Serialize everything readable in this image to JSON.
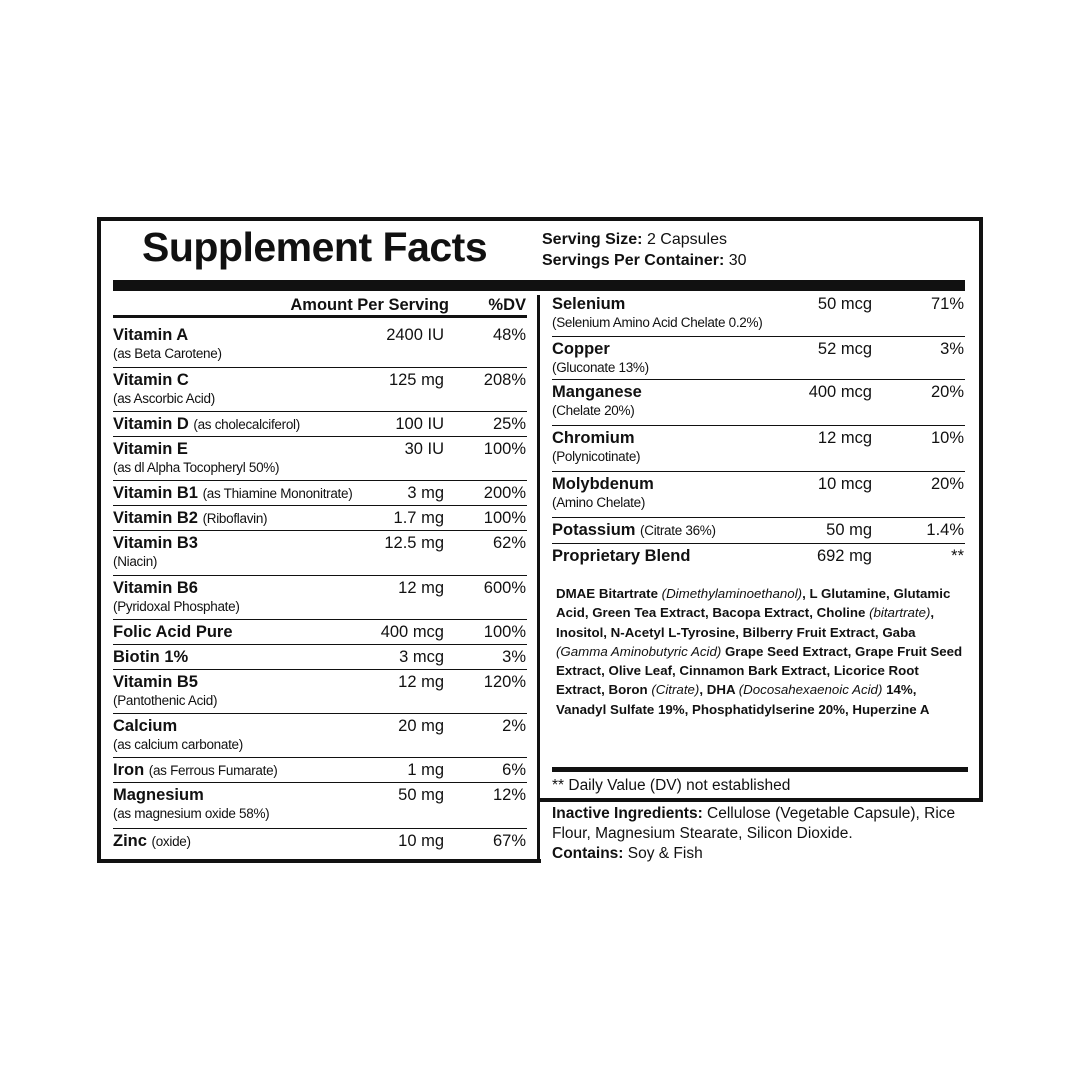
{
  "title": "Supplement Facts",
  "serving": {
    "size_label": "Serving Size:",
    "size": "2 Capsules",
    "per_container_label": "Servings Per Container:",
    "per_container": "30"
  },
  "headers": {
    "amount": "Amount Per Serving",
    "dv": "%DV"
  },
  "left_rows": [
    {
      "name": "Vitamin A",
      "sub": "(as Beta Carotene)",
      "inline": false,
      "amount": "2400 IU",
      "dv": "48%"
    },
    {
      "name": "Vitamin C",
      "sub": "(as Ascorbic Acid)",
      "inline": false,
      "amount": "125 mg",
      "dv": "208%"
    },
    {
      "name": "Vitamin D",
      "sub": "(as cholecalciferol)",
      "inline": true,
      "amount": "100 IU",
      "dv": "25%"
    },
    {
      "name": "Vitamin E",
      "sub": "(as dl Alpha Tocopheryl 50%)",
      "inline": false,
      "amount": "30 IU",
      "dv": "100%"
    },
    {
      "name": "Vitamin B1",
      "sub": "(as Thiamine Mononitrate)",
      "inline": true,
      "amount": "3 mg",
      "dv": "200%"
    },
    {
      "name": "Vitamin B2",
      "sub": "(Riboflavin)",
      "inline": true,
      "amount": "1.7 mg",
      "dv": "100%"
    },
    {
      "name": "Vitamin B3",
      "sub": "(Niacin)",
      "inline": false,
      "amount": "12.5 mg",
      "dv": "62%"
    },
    {
      "name": "Vitamin B6",
      "sub": "(Pyridoxal Phosphate)",
      "inline": false,
      "amount": "12 mg",
      "dv": "600%"
    },
    {
      "name": "Folic Acid Pure",
      "sub": "",
      "inline": true,
      "amount": "400 mcg",
      "dv": "100%"
    },
    {
      "name": "Biotin 1%",
      "sub": "",
      "inline": true,
      "amount": "3 mcg",
      "dv": "3%"
    },
    {
      "name": "Vitamin B5",
      "sub": "(Pantothenic Acid)",
      "inline": false,
      "amount": "12 mg",
      "dv": "120%"
    },
    {
      "name": "Calcium",
      "sub": "(as calcium carbonate)",
      "inline": false,
      "amount": "20 mg",
      "dv": "2%"
    },
    {
      "name": "Iron",
      "sub": "(as Ferrous Fumarate)",
      "inline": true,
      "amount": "1 mg",
      "dv": "6%"
    },
    {
      "name": "Magnesium",
      "sub": "(as magnesium oxide 58%)",
      "inline": false,
      "amount": "50 mg",
      "dv": "12%"
    },
    {
      "name": "Zinc",
      "sub": "(oxide)",
      "inline": true,
      "amount": "10 mg",
      "dv": "67%"
    }
  ],
  "right_rows": [
    {
      "name": "Selenium",
      "sub": "(Selenium Amino Acid Chelate 0.2%)",
      "inline": false,
      "amount": "50 mcg",
      "dv": "71%"
    },
    {
      "name": "Copper",
      "sub": "(Gluconate 13%)",
      "inline": false,
      "amount": "52 mcg",
      "dv": "3%"
    },
    {
      "name": "Manganese",
      "sub": "(Chelate 20%)",
      "inline": false,
      "amount": "400 mcg",
      "dv": "20%"
    },
    {
      "name": "Chromium",
      "sub": "(Polynicotinate)",
      "inline": false,
      "amount": "12 mcg",
      "dv": "10%"
    },
    {
      "name": "Molybdenum",
      "sub": "(Amino Chelate)",
      "inline": false,
      "amount": "10 mcg",
      "dv": "20%"
    },
    {
      "name": "Potassium",
      "sub": "(Citrate 36%)",
      "inline": true,
      "amount": "50 mg",
      "dv": "1.4%"
    },
    {
      "name": "Proprietary Blend",
      "sub": "",
      "inline": true,
      "amount": "692 mg",
      "dv": "**"
    }
  ],
  "blend": [
    {
      "t": "DMAE Bitartrate ",
      "i": false
    },
    {
      "t": "(Dimethylaminoethanol)",
      "i": true
    },
    {
      "t": ", L Glutamine, Glutamic Acid, Green Tea Extract, Bacopa Extract, Choline ",
      "i": false
    },
    {
      "t": "(bitartrate)",
      "i": true
    },
    {
      "t": ", Inositol, N-Acetyl L-Tyrosine, Bilberry Fruit Extract, Gaba ",
      "i": false
    },
    {
      "t": "(Gamma Aminobutyric Acid)",
      "i": true
    },
    {
      "t": " Grape Seed Extract, Grape Fruit Seed Extract, Olive Leaf, Cinnamon Bark Extract, Licorice Root Extract, Boron ",
      "i": false
    },
    {
      "t": "(Citrate)",
      "i": true
    },
    {
      "t": ", DHA ",
      "i": false
    },
    {
      "t": "(Docosahexaenoic Acid)",
      "i": true
    },
    {
      "t": " 14%, Vanadyl Sulfate 19%, Phosphatidylserine 20%, Huperzine A",
      "i": false
    }
  ],
  "dv_note": "** Daily Value (DV) not established",
  "inactive": {
    "label": "Inactive Ingredients:",
    "text": " Cellulose (Vegetable Capsule), Rice Flour, Magnesium Stearate, Silicon Dioxide.",
    "contains_label": "Contains:",
    "contains": " Soy & Fish"
  }
}
